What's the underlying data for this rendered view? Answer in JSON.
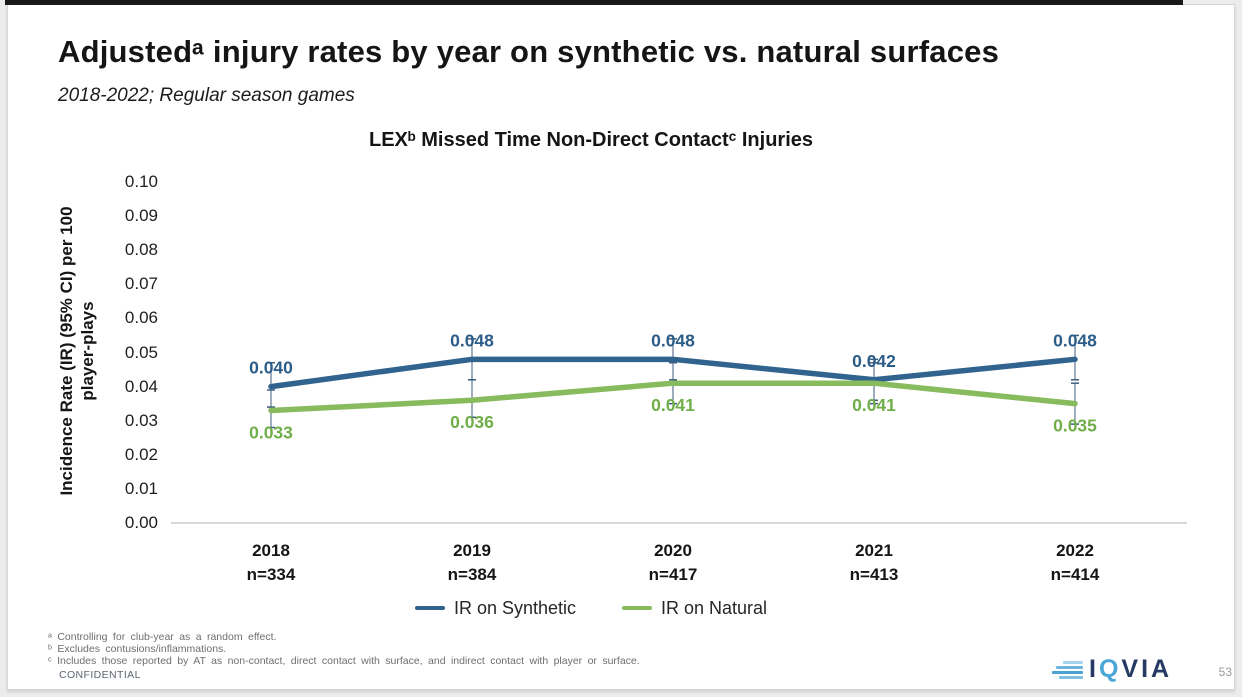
{
  "slide": {
    "title": "Adjustedᵃ injury rates by year on synthetic vs. natural surfaces",
    "subtitle": "2018-2022; Regular season games"
  },
  "chart_data": {
    "type": "line",
    "title": "LEXᵇ Missed Time Non-Direct Contactᶜ Injuries",
    "ylabel": "Incidence Rate (IR) (95% CI) per 100\nplayer-plays",
    "xlabel": "",
    "ylim": [
      0,
      0.1
    ],
    "ytick_step": 0.01,
    "ytick_decimals": 2,
    "grid": false,
    "legend_position": "bottom",
    "axis_line_color": "#d9d9d9",
    "error_bar_color": "#3f5e7e",
    "x_categories": [
      "2018",
      "2019",
      "2020",
      "2021",
      "2022"
    ],
    "x_sublabels": [
      "n=334",
      "n=384",
      "n=417",
      "n=413",
      "n=414"
    ],
    "series": [
      {
        "name": "IR on Synthetic",
        "color": "#30638D",
        "label_color": "#2B5D88",
        "values": [
          0.04,
          0.048,
          0.048,
          0.042,
          0.048
        ],
        "ci_low": [
          0.034,
          0.042,
          0.042,
          0.036,
          0.042
        ],
        "ci_high": [
          0.047,
          0.054,
          0.054,
          0.048,
          0.055
        ],
        "label_position": "above"
      },
      {
        "name": "IR on Natural",
        "color": "#87BB5D",
        "label_color": "#6FAE49",
        "values": [
          0.033,
          0.036,
          0.041,
          0.041,
          0.035
        ],
        "ci_low": [
          0.028,
          0.031,
          0.035,
          0.035,
          0.029
        ],
        "ci_high": [
          0.039,
          0.042,
          0.047,
          0.047,
          0.041
        ],
        "label_position": "below"
      }
    ]
  },
  "footer": {
    "footnotes": [
      "ᵃ Controlling for club-year as a random effect.",
      "ᵇ Excludes contusions/inflammations.",
      "ᶜ Includes those reported by AT as non-contact, direct contact with surface, and indirect contact with player or surface."
    ],
    "confidential": "CONFIDENTIAL",
    "page_number": "53"
  },
  "logo": {
    "name": "IQVIA",
    "parts": [
      "I",
      "Q",
      "VIA"
    ]
  }
}
